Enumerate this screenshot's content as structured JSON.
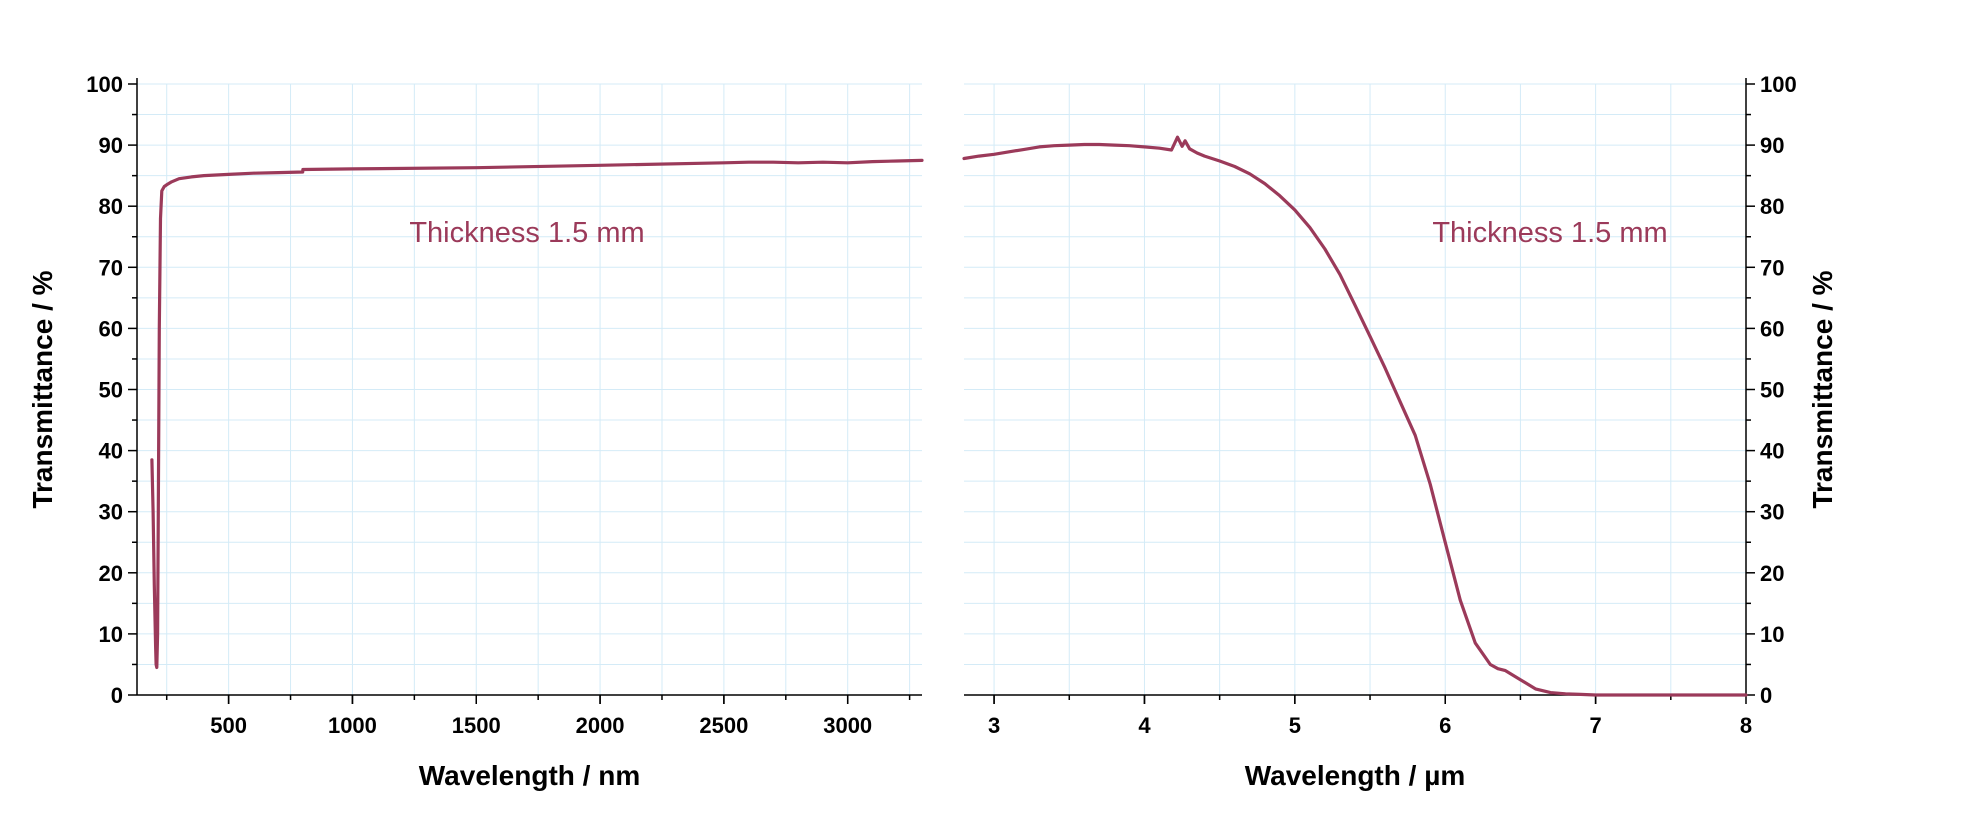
{
  "chart_data": [
    {
      "type": "line",
      "title": "",
      "xlabel": "Wavelength / nm",
      "ylabel": "Transmittance / %",
      "xlim": [
        130,
        3300
      ],
      "ylim": [
        0,
        100
      ],
      "xticks": [
        500,
        1000,
        1500,
        2000,
        2500,
        3000
      ],
      "xtick_labels": [
        "500",
        "1000",
        "1500",
        "2000",
        "2500",
        "3000"
      ],
      "yticks": [
        0,
        10,
        20,
        30,
        40,
        50,
        60,
        70,
        80,
        90,
        100
      ],
      "ytick_labels": [
        "0",
        "10",
        "20",
        "30",
        "40",
        "50",
        "60",
        "70",
        "80",
        "90",
        "100"
      ],
      "y_axis_side": "left",
      "grid": true,
      "annotation": "Thickness 1.5 mm",
      "series": [
        {
          "color": "#9b3a5a",
          "x": [
            190,
            195,
            200,
            205,
            207,
            210,
            213,
            216,
            220,
            225,
            230,
            240,
            250,
            270,
            300,
            350,
            400,
            500,
            600,
            700,
            799,
            800,
            1000,
            1500,
            2000,
            2500,
            2600,
            2700,
            2800,
            2900,
            3000,
            3100,
            3200,
            3300
          ],
          "y": [
            38.5,
            30,
            18,
            8,
            5,
            4.5,
            10,
            30,
            60,
            78,
            82.5,
            83.2,
            83.5,
            84.0,
            84.5,
            84.8,
            85.0,
            85.2,
            85.4,
            85.5,
            85.6,
            86.0,
            86.1,
            86.3,
            86.7,
            87.1,
            87.2,
            87.2,
            87.1,
            87.2,
            87.1,
            87.3,
            87.4,
            87.5
          ]
        }
      ]
    },
    {
      "type": "line",
      "title": "",
      "xlabel": "Wavelength / µm",
      "ylabel": "Transmittance / %",
      "xlim": [
        2.8,
        8
      ],
      "ylim": [
        0,
        100
      ],
      "xticks": [
        3,
        4,
        5,
        6,
        7,
        8
      ],
      "xtick_labels": [
        "3",
        "4",
        "5",
        "6",
        "7",
        "8"
      ],
      "yticks": [
        0,
        10,
        20,
        30,
        40,
        50,
        60,
        70,
        80,
        90,
        100
      ],
      "ytick_labels": [
        "0",
        "10",
        "20",
        "30",
        "40",
        "50",
        "60",
        "70",
        "80",
        "90",
        "100"
      ],
      "y_axis_side": "right",
      "grid": true,
      "annotation": "Thickness 1.5 mm",
      "series": [
        {
          "color": "#9b3a5a",
          "x": [
            2.8,
            2.9,
            3.0,
            3.1,
            3.2,
            3.3,
            3.4,
            3.5,
            3.6,
            3.7,
            3.8,
            3.9,
            4.0,
            4.1,
            4.18,
            4.22,
            4.25,
            4.27,
            4.3,
            4.35,
            4.4,
            4.5,
            4.6,
            4.7,
            4.8,
            4.9,
            5.0,
            5.1,
            5.2,
            5.3,
            5.4,
            5.5,
            5.6,
            5.7,
            5.8,
            5.9,
            6.0,
            6.1,
            6.2,
            6.3,
            6.35,
            6.4,
            6.5,
            6.6,
            6.7,
            6.8,
            6.9,
            7.0,
            7.5,
            8.0
          ],
          "y": [
            87.8,
            88.2,
            88.5,
            88.9,
            89.3,
            89.7,
            89.9,
            90.0,
            90.1,
            90.1,
            90.0,
            89.9,
            89.7,
            89.5,
            89.2,
            91.3,
            89.8,
            90.7,
            89.4,
            88.7,
            88.2,
            87.4,
            86.5,
            85.3,
            83.7,
            81.7,
            79.4,
            76.5,
            73.0,
            68.8,
            63.8,
            58.7,
            53.5,
            48.0,
            42.5,
            34.5,
            25.0,
            15.5,
            8.5,
            5.0,
            4.3,
            4.0,
            2.5,
            1.0,
            0.4,
            0.2,
            0.1,
            0.0,
            0.0,
            0.0
          ]
        }
      ]
    }
  ]
}
